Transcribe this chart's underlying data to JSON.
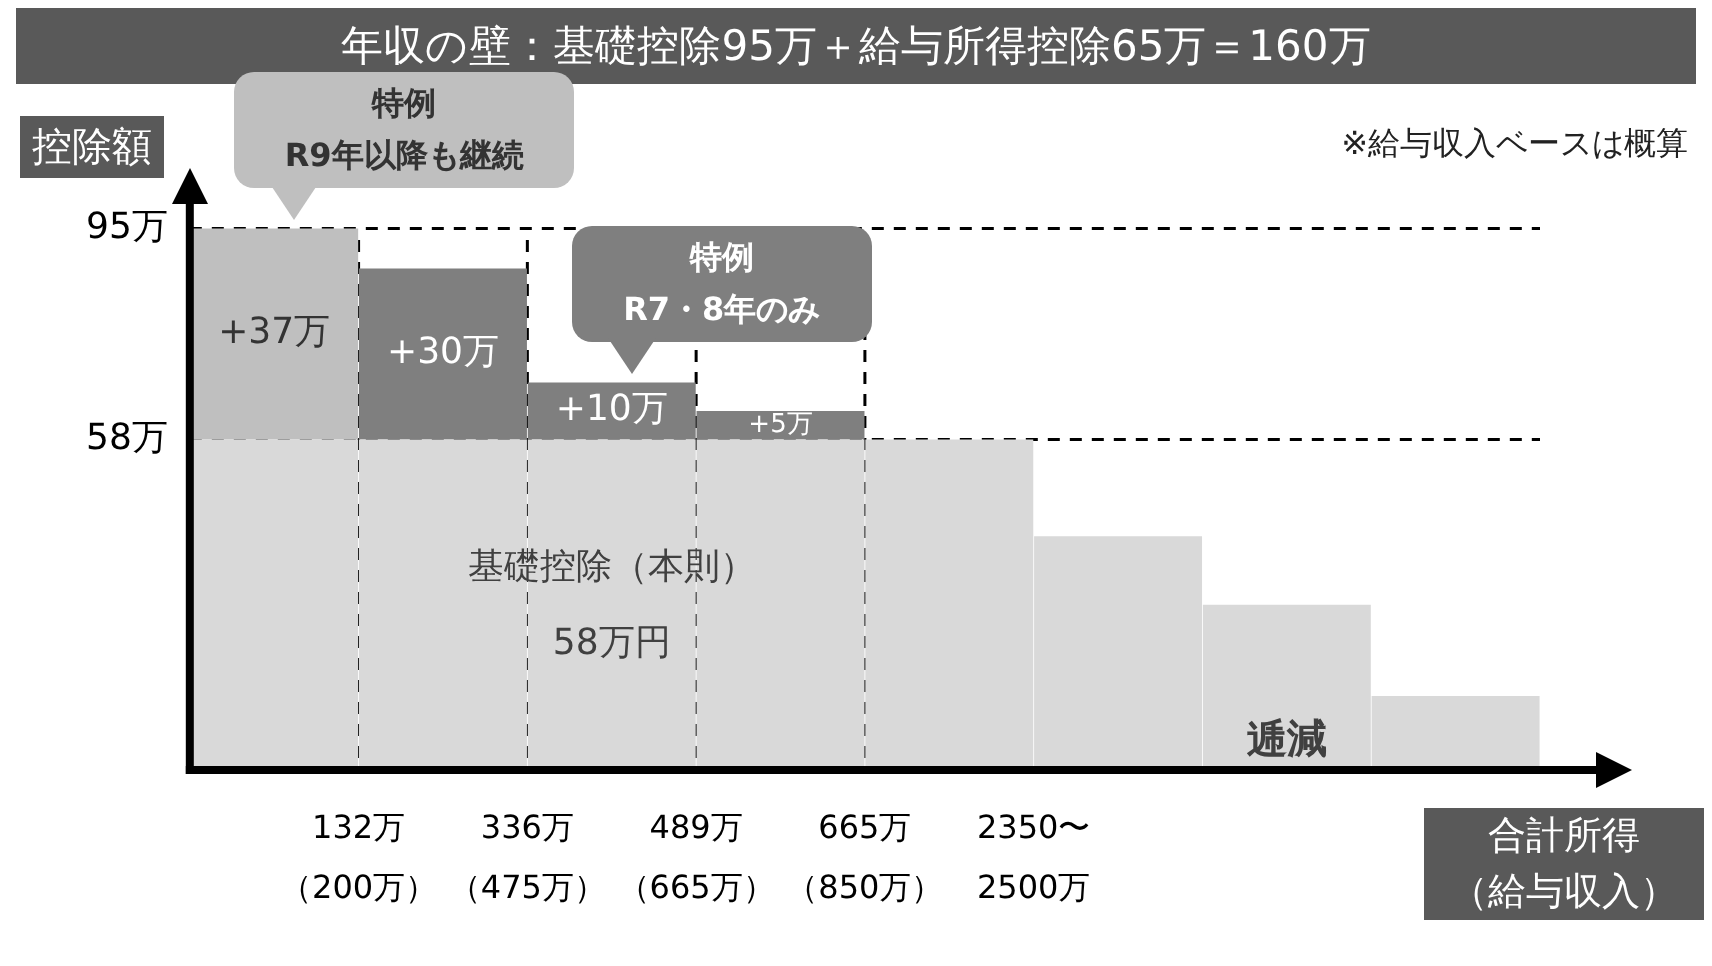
{
  "chart_data": {
    "type": "bar",
    "stacked": true,
    "title": "年収の壁：基礎控除95万＋給与所得控除65万＝160万",
    "ylabel": "控除額",
    "xlabel": "合計所得（給与収入）",
    "categories": [
      "132万（200万）",
      "336万（475万）",
      "489万（665万）",
      "665万（850万）",
      "2350〜2500万",
      null,
      null,
      null
    ],
    "series": [
      {
        "color": "#d9d9d9",
        "values": [
          58,
          58,
          58,
          58,
          58,
          41,
          29,
          13
        ]
      },
      {
        "colors": [
          "#bfbfbf",
          "#7f7f7f",
          "#7f7f7f",
          "#7f7f7f",
          "#7f7f7f",
          "#7f7f7f",
          "#7f7f7f",
          "#7f7f7f"
        ],
        "values": [
          37,
          30,
          10,
          5,
          null,
          null,
          null,
          null
        ],
        "value_labels": [
          "+37万",
          "+30万",
          "+10万",
          "+5万",
          null,
          null,
          null,
          null
        ]
      }
    ],
    "ylim": [
      0,
      100
    ],
    "yticks": [
      {
        "value": 58,
        "label": "58万"
      },
      {
        "value": 95,
        "label": "95万"
      }
    ],
    "grid": "y",
    "line_style": "dashed",
    "legend": false,
    "ref_lines": [
      {
        "axis": "x",
        "value": "132万（200万）",
        "line_style": "dashed"
      },
      {
        "axis": "x",
        "value": "336万（475万）",
        "line_style": "dashed"
      },
      {
        "axis": "x",
        "value": "489万（665万）",
        "line_style": "dashed"
      },
      {
        "axis": "x",
        "value": "665万（850万）",
        "line_style": "dashed"
      }
    ],
    "annotations": [
      {
        "text": "特例\nR9年以降も継続",
        "x": "132万（200万）",
        "y": 95
      },
      {
        "text": "特例\nR7・8年のみ",
        "x": "489万（665万）",
        "y": 68
      },
      {
        "text": "基礎控除（本則）\n58万円",
        "x": "489万（665万）",
        "y": 29
      },
      "逓減",
      "※給与収入ベースは概算"
    ]
  }
}
